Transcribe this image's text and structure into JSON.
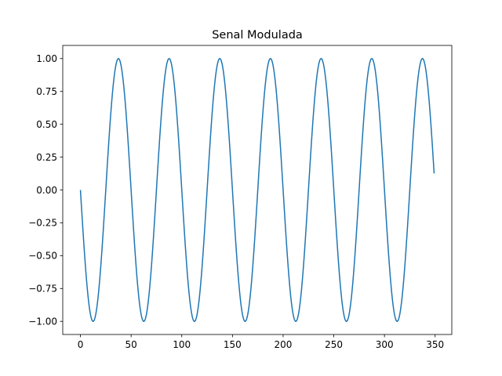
{
  "chart_data": {
    "type": "line",
    "title": "Senal Modulada",
    "xlabel": "",
    "ylabel": "",
    "xlim": [
      -17.45,
      366.45
    ],
    "ylim": [
      -1.1,
      1.1
    ],
    "xticks": [
      0,
      50,
      100,
      150,
      200,
      250,
      300,
      350
    ],
    "xtick_labels": [
      "0",
      "50",
      "100",
      "150",
      "200",
      "250",
      "300",
      "350"
    ],
    "yticks": [
      -1.0,
      -0.75,
      -0.5,
      -0.25,
      0.0,
      0.25,
      0.5,
      0.75,
      1.0
    ],
    "ytick_labels": [
      "−1.00",
      "−0.75",
      "−0.50",
      "−0.25",
      "0.00",
      "0.25",
      "0.50",
      "0.75",
      "1.00"
    ],
    "grid": false,
    "legend": "none",
    "series": [
      {
        "color": "#1f77b4",
        "segments": [
          {
            "x_start": 0,
            "x_end": 49,
            "phase_start": 0.5,
            "phase_sign": 1
          },
          {
            "x_start": 50,
            "x_end": 99,
            "phase_start": 0.0,
            "phase_sign": -1
          },
          {
            "x_start": 100,
            "x_end": 149,
            "phase_start": 0.5,
            "phase_sign": 1
          },
          {
            "x_start": 150,
            "x_end": 199,
            "phase_start": 0.0,
            "phase_sign": -1
          },
          {
            "x_start": 200,
            "x_end": 249,
            "phase_start": 0.5,
            "phase_sign": 1
          },
          {
            "x_start": 250,
            "x_end": 299,
            "phase_start": 0.0,
            "phase_sign": -1
          },
          {
            "x_start": 300,
            "x_end": 349,
            "phase_start": 0.0,
            "phase_sign": -1
          }
        ],
        "period": 50
      }
    ]
  }
}
